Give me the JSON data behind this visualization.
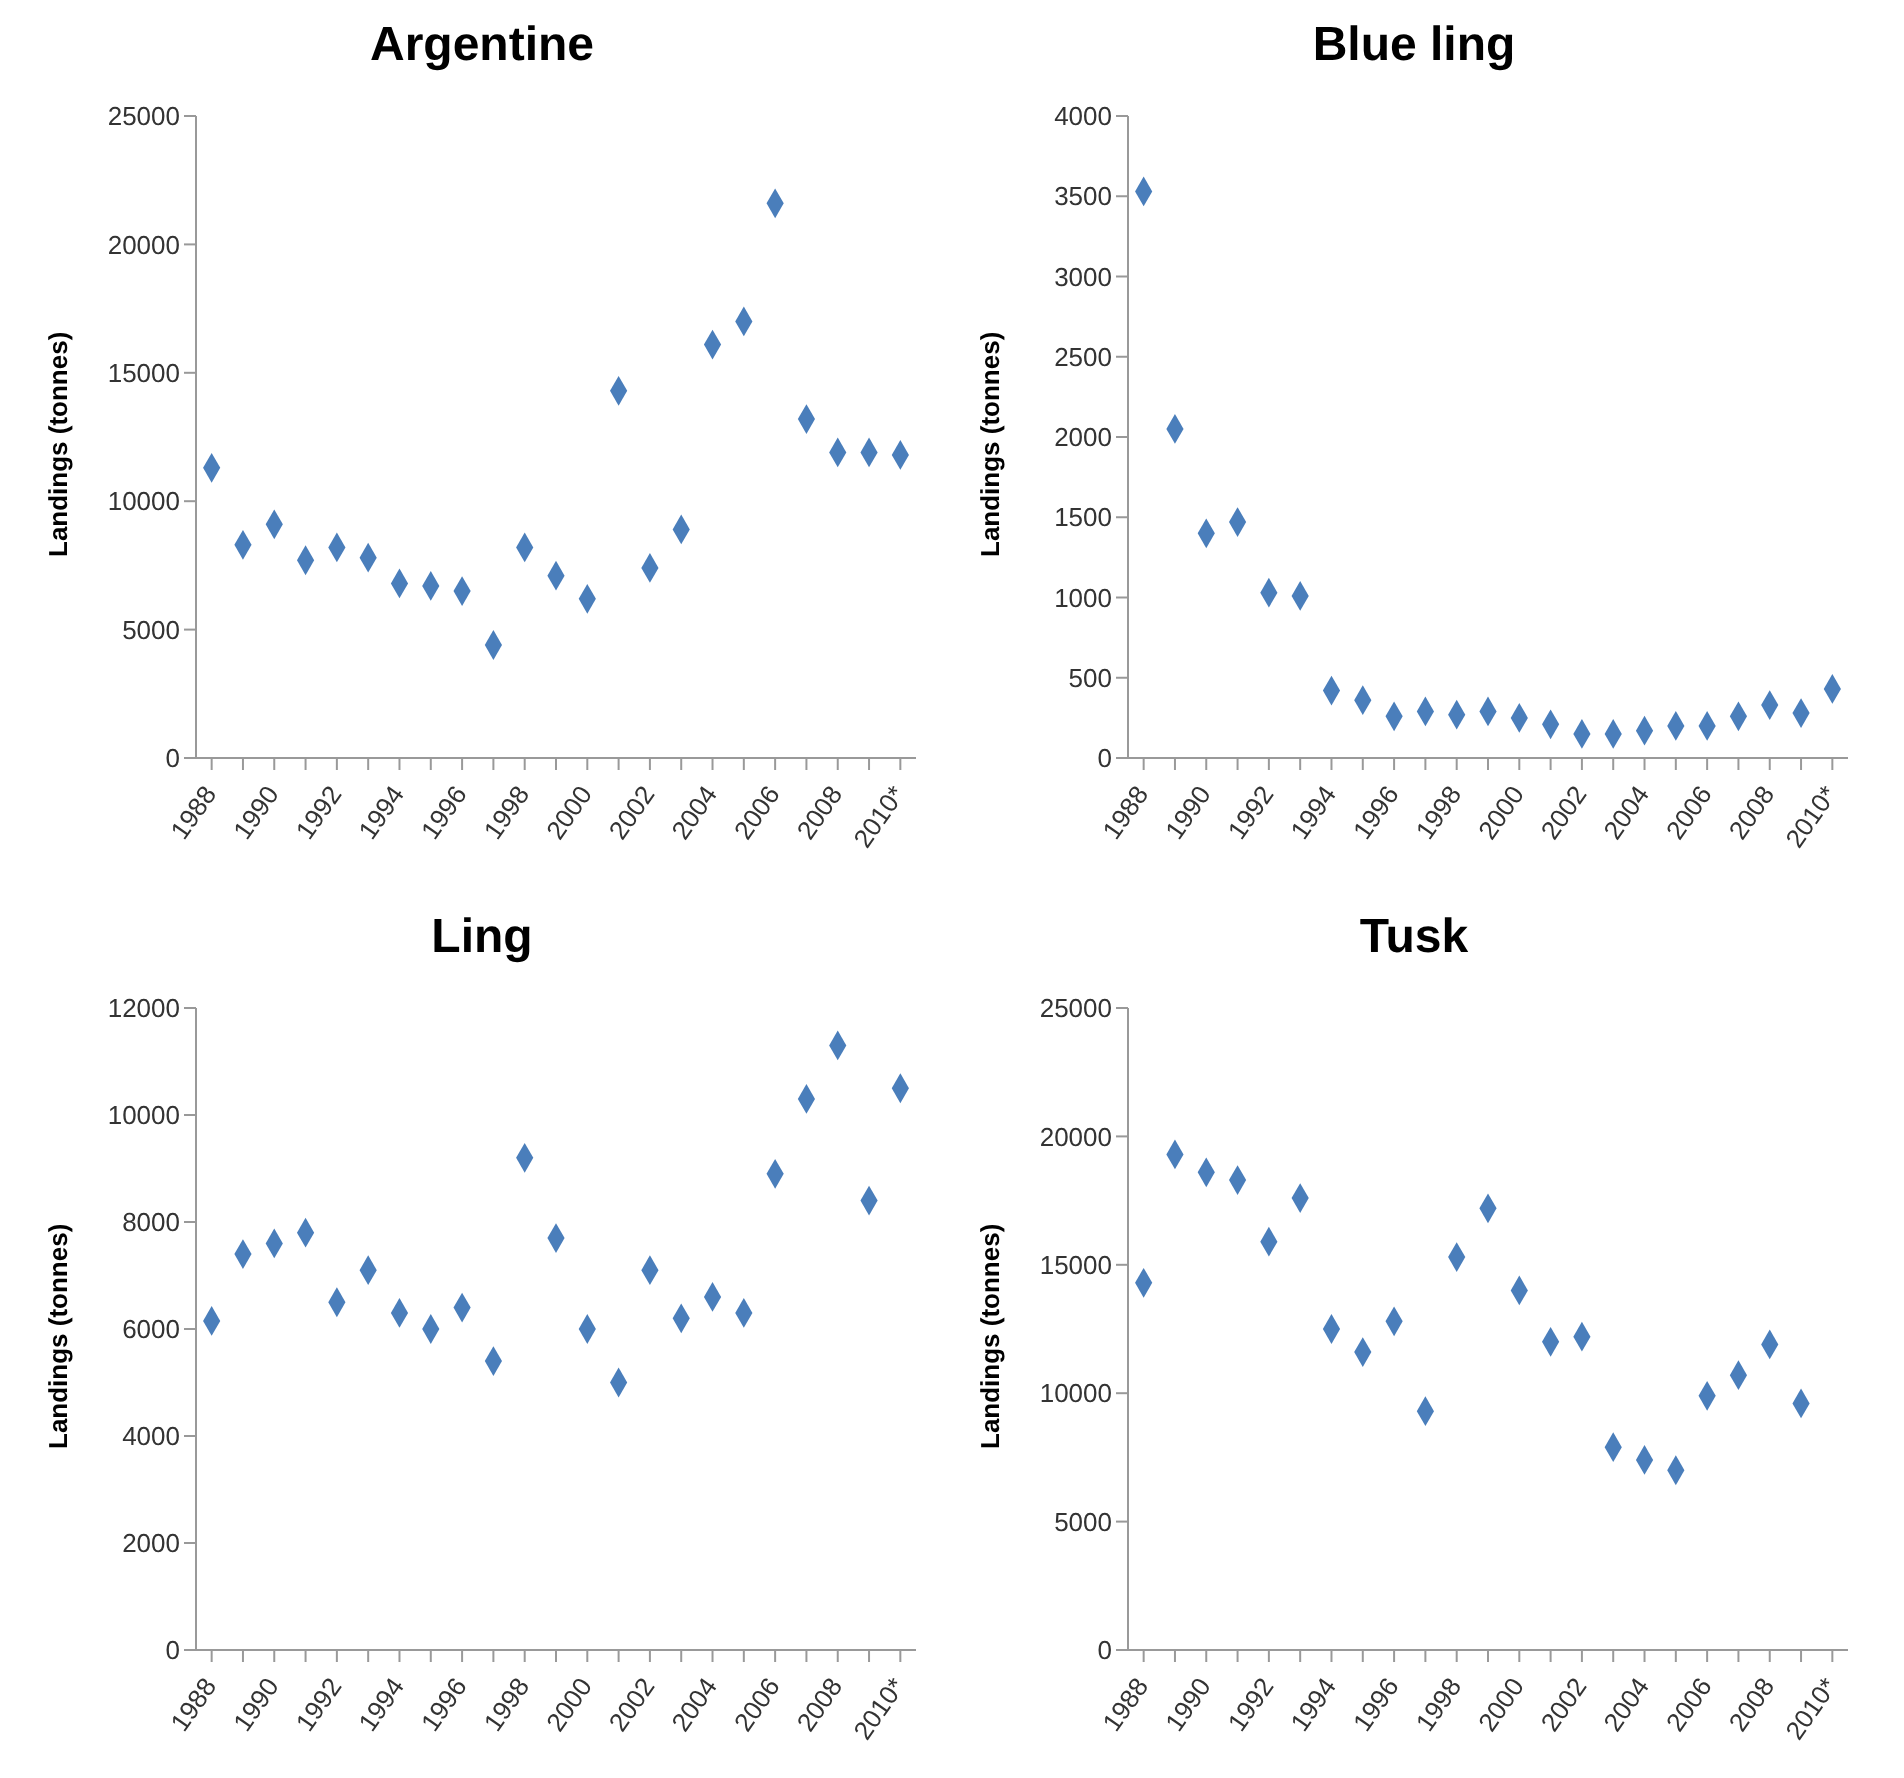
{
  "chart_data": [
    {
      "type": "scatter",
      "title": "Argentine",
      "ylabel": "Landings (tonnes)",
      "categories": [
        "1988",
        null,
        "1990",
        null,
        "1992",
        null,
        "1994",
        null,
        "1996",
        null,
        "1998",
        null,
        "2000",
        null,
        "2002",
        null,
        "2004",
        null,
        "2006",
        null,
        "2008",
        null,
        "2010*"
      ],
      "series": [
        {
          "color": "#4a7ebb",
          "values": [
            11300,
            8300,
            9100,
            7700,
            8200,
            7800,
            6800,
            6700,
            6500,
            4400,
            8200,
            7100,
            6200,
            14300,
            7400,
            8900,
            16100,
            17000,
            21600,
            13200,
            11900,
            11900,
            11800
          ]
        }
      ],
      "ylim": [
        0,
        25000
      ],
      "yticks": [
        0,
        5000,
        10000,
        15000,
        20000,
        25000
      ],
      "marker": "diamond",
      "grid": false,
      "legend": false
    },
    {
      "type": "scatter",
      "title": "Blue ling",
      "ylabel": "Landings (tonnes)",
      "categories": [
        "1988",
        null,
        "1990",
        null,
        "1992",
        null,
        "1994",
        null,
        "1996",
        null,
        "1998",
        null,
        "2000",
        null,
        "2002",
        null,
        "2004",
        null,
        "2006",
        null,
        "2008",
        null,
        "2010*"
      ],
      "series": [
        {
          "color": "#4a7ebb",
          "values": [
            3530,
            2050,
            1400,
            1470,
            1030,
            1010,
            420,
            360,
            260,
            290,
            270,
            290,
            250,
            210,
            150,
            150,
            170,
            200,
            200,
            260,
            330,
            280,
            430
          ]
        }
      ],
      "ylim": [
        0,
        4000
      ],
      "yticks": [
        0,
        500,
        1000,
        1500,
        2000,
        2500,
        3000,
        3500,
        4000
      ],
      "marker": "diamond",
      "grid": false,
      "legend": false
    },
    {
      "type": "scatter",
      "title": "Ling",
      "ylabel": "Landings (tonnes)",
      "categories": [
        "1988",
        null,
        "1990",
        null,
        "1992",
        null,
        "1994",
        null,
        "1996",
        null,
        "1998",
        null,
        "2000",
        null,
        "2002",
        null,
        "2004",
        null,
        "2006",
        null,
        "2008",
        null,
        "2010*"
      ],
      "series": [
        {
          "color": "#4a7ebb",
          "values": [
            6150,
            7400,
            7600,
            7800,
            6500,
            7100,
            6300,
            6000,
            6400,
            5400,
            9200,
            7700,
            6000,
            5000,
            7100,
            6200,
            6600,
            6300,
            8900,
            10300,
            11300,
            8400,
            10500
          ]
        }
      ],
      "ylim": [
        0,
        12000
      ],
      "yticks": [
        0,
        2000,
        4000,
        6000,
        8000,
        10000,
        12000
      ],
      "marker": "diamond",
      "grid": false,
      "legend": false
    },
    {
      "type": "scatter",
      "title": "Tusk",
      "ylabel": "Landings (tonnes)",
      "categories": [
        "1988",
        null,
        "1990",
        null,
        "1992",
        null,
        "1994",
        null,
        "1996",
        null,
        "1998",
        null,
        "2000",
        null,
        "2002",
        null,
        "2004",
        null,
        "2006",
        null,
        "2008",
        null,
        "2010*"
      ],
      "series": [
        {
          "color": "#4a7ebb",
          "values": [
            14300,
            19300,
            18600,
            18300,
            15900,
            17600,
            12500,
            11600,
            12800,
            9300,
            15300,
            17200,
            14000,
            12000,
            12200,
            7900,
            7400,
            7000,
            9900,
            10700,
            11900,
            9600,
            null
          ]
        }
      ],
      "ylim": [
        0,
        25000
      ],
      "yticks": [
        0,
        5000,
        10000,
        15000,
        20000,
        25000
      ],
      "marker": "diamond",
      "grid": false,
      "legend": false
    }
  ]
}
